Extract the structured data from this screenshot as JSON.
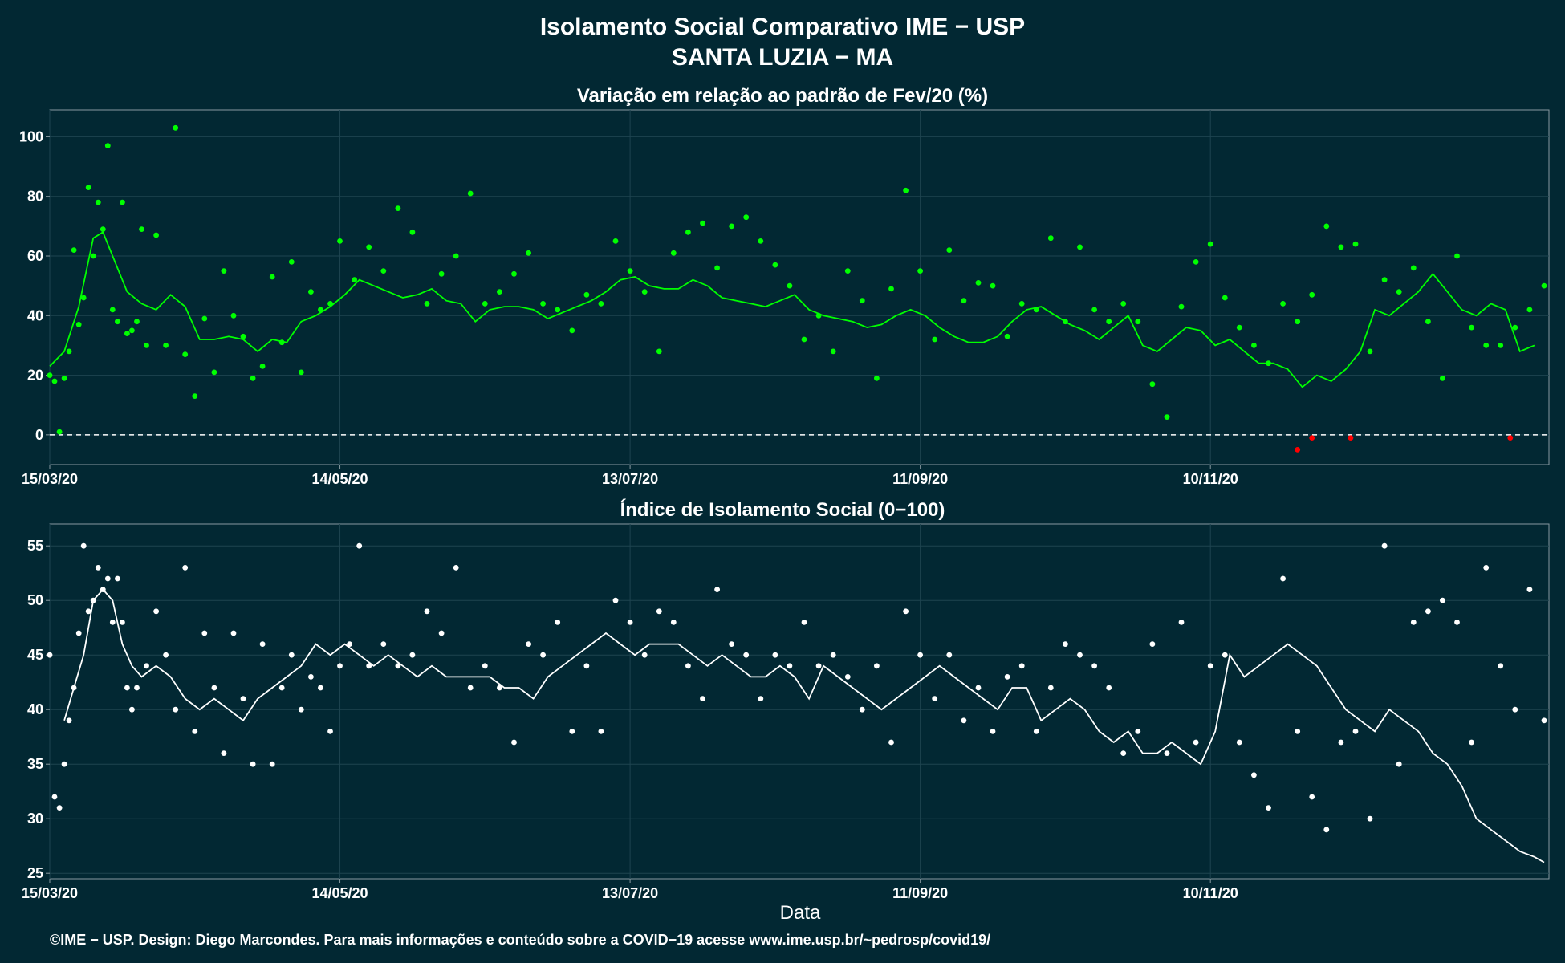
{
  "header": {
    "title_line1": "Isolamento Social Comparativo IME − USP",
    "title_line2": "SANTA LUZIA − MA"
  },
  "footer": {
    "credit": "©IME − USP. Design: Diego Marcondes. Para mais informações e conteúdo sobre a COVID−19 acesse www.ime.usp.br/~pedrosp/covid19/"
  },
  "colors": {
    "background": "#022833",
    "panel_border": "#8899a0",
    "grid": "#1e4450",
    "variation_points": "#00ff00",
    "negative_points": "#ff0000",
    "index_points": "#ffffff"
  },
  "chart_data": [
    {
      "type": "scatter",
      "title": "Variação em relação ao padrão de Fev/20 (%)",
      "xlabel": "",
      "ylabel": "",
      "x_tick_labels": [
        "15/03/20",
        "14/05/20",
        "13/07/20",
        "11/09/20",
        "10/11/20"
      ],
      "x_tick_days": [
        0,
        60,
        120,
        180,
        240
      ],
      "y_ticks": [
        0,
        20,
        40,
        60,
        80,
        100
      ],
      "xlim": [
        0,
        310
      ],
      "ylim": [
        -10,
        109
      ],
      "reference_line": 0,
      "grid": true,
      "series": [
        {
          "x": [
            0,
            1,
            2,
            3,
            4,
            5,
            6,
            7,
            8,
            9,
            10,
            11,
            12,
            13,
            14,
            15,
            16,
            17,
            18,
            19,
            20,
            22,
            24,
            26,
            28,
            30,
            32,
            34,
            36,
            38,
            40,
            42,
            44,
            46,
            48,
            50,
            52,
            54,
            56,
            58,
            60,
            63,
            66,
            69,
            72,
            75,
            78,
            81,
            84,
            87,
            90,
            93,
            96,
            99,
            102,
            105,
            108,
            111,
            114,
            117,
            120,
            123,
            126,
            129,
            132,
            135,
            138,
            141,
            144,
            147,
            150,
            153,
            156,
            159,
            162,
            165,
            168,
            171,
            174,
            177,
            180,
            183,
            186,
            189,
            192,
            195,
            198,
            201,
            204,
            207,
            210,
            213,
            216,
            219,
            222,
            225,
            228,
            231,
            234,
            237,
            240,
            243,
            246,
            249,
            252,
            255,
            258,
            261,
            264,
            267,
            270,
            273,
            276,
            279,
            282,
            285,
            288,
            291,
            294,
            297,
            300,
            303,
            306,
            309
          ],
          "values": [
            20,
            18,
            1,
            19,
            28,
            62,
            37,
            46,
            83,
            60,
            78,
            69,
            97,
            42,
            38,
            78,
            34,
            35,
            38,
            69,
            30,
            67,
            30,
            103,
            27,
            13,
            39,
            21,
            55,
            40,
            33,
            19,
            23,
            53,
            31,
            58,
            21,
            48,
            42,
            44,
            65,
            52,
            63,
            55,
            76,
            68,
            44,
            54,
            60,
            81,
            44,
            48,
            54,
            61,
            44,
            42,
            35,
            47,
            44,
            65,
            55,
            48,
            28,
            61,
            68,
            71,
            56,
            70,
            73,
            65,
            57,
            50,
            32,
            40,
            28,
            55,
            45,
            19,
            49,
            82,
            55,
            32,
            62,
            45,
            51,
            50,
            33,
            44,
            42,
            66,
            38,
            63,
            42,
            38,
            44,
            38,
            17,
            6,
            43,
            58,
            64,
            46,
            36,
            30,
            24,
            44,
            38,
            47,
            70,
            63,
            64,
            28,
            52,
            48,
            56,
            38,
            19,
            60,
            36,
            30,
            30,
            36,
            42,
            50
          ]
        },
        {
          "name": "negative",
          "x": [
            258,
            261,
            269,
            302
          ],
          "values": [
            -5,
            -1,
            -1,
            -1
          ]
        },
        {
          "name": "moving-average",
          "type": "line",
          "x": [
            0,
            3,
            6,
            9,
            11,
            13,
            16,
            19,
            22,
            25,
            28,
            31,
            34,
            37,
            40,
            43,
            46,
            49,
            52,
            55,
            58,
            61,
            64,
            67,
            70,
            73,
            76,
            79,
            82,
            85,
            88,
            91,
            94,
            97,
            100,
            103,
            106,
            109,
            112,
            115,
            118,
            121,
            124,
            127,
            130,
            133,
            136,
            139,
            142,
            145,
            148,
            151,
            154,
            157,
            160,
            163,
            166,
            169,
            172,
            175,
            178,
            181,
            184,
            187,
            190,
            193,
            196,
            199,
            202,
            205,
            208,
            211,
            214,
            217,
            220,
            223,
            226,
            229,
            232,
            235,
            238,
            241,
            244,
            247,
            250,
            253,
            256,
            259,
            262,
            265,
            268,
            271,
            274,
            277,
            280,
            283,
            286,
            289,
            292,
            295,
            298,
            301,
            304,
            307
          ],
          "values": [
            23,
            28,
            43,
            66,
            68,
            60,
            48,
            44,
            42,
            47,
            43,
            32,
            32,
            33,
            32,
            28,
            32,
            31,
            38,
            40,
            43,
            47,
            52,
            50,
            48,
            46,
            47,
            49,
            45,
            44,
            38,
            42,
            43,
            43,
            42,
            39,
            41,
            43,
            45,
            48,
            52,
            53,
            50,
            49,
            49,
            52,
            50,
            46,
            45,
            44,
            43,
            45,
            47,
            42,
            40,
            39,
            38,
            36,
            37,
            40,
            42,
            40,
            36,
            33,
            31,
            31,
            33,
            38,
            42,
            43,
            40,
            37,
            35,
            32,
            36,
            40,
            30,
            28,
            32,
            36,
            35,
            30,
            32,
            28,
            24,
            24,
            22,
            16,
            20,
            18,
            22,
            28,
            42,
            40,
            44,
            48,
            54,
            48,
            42,
            40,
            44,
            42,
            28,
            30
          ]
        }
      ]
    },
    {
      "type": "scatter",
      "title": "Índice de Isolamento Social (0−100)",
      "xlabel": "Data",
      "ylabel": "",
      "x_tick_labels": [
        "15/03/20",
        "14/05/20",
        "13/07/20",
        "11/09/20",
        "10/11/20"
      ],
      "x_tick_days": [
        0,
        60,
        120,
        180,
        240
      ],
      "y_ticks": [
        25,
        30,
        35,
        40,
        45,
        50,
        55
      ],
      "xlim": [
        0,
        310
      ],
      "ylim": [
        24.5,
        57
      ],
      "grid": true,
      "series": [
        {
          "x": [
            0,
            1,
            2,
            3,
            4,
            5,
            6,
            7,
            8,
            9,
            10,
            11,
            12,
            13,
            14,
            15,
            16,
            17,
            18,
            20,
            22,
            24,
            26,
            28,
            30,
            32,
            34,
            36,
            38,
            40,
            42,
            44,
            46,
            48,
            50,
            52,
            54,
            56,
            58,
            60,
            62,
            64,
            66,
            69,
            72,
            75,
            78,
            81,
            84,
            87,
            90,
            93,
            96,
            99,
            102,
            105,
            108,
            111,
            114,
            117,
            120,
            123,
            126,
            129,
            132,
            135,
            138,
            141,
            144,
            147,
            150,
            153,
            156,
            159,
            162,
            165,
            168,
            171,
            174,
            177,
            180,
            183,
            186,
            189,
            192,
            195,
            198,
            201,
            204,
            207,
            210,
            213,
            216,
            219,
            222,
            225,
            228,
            231,
            234,
            237,
            240,
            243,
            246,
            249,
            252,
            255,
            258,
            261,
            264,
            267,
            270,
            273,
            276,
            279,
            282,
            285,
            288,
            291,
            294,
            297,
            300,
            303,
            306,
            309
          ],
          "values": [
            45,
            32,
            31,
            35,
            39,
            42,
            47,
            55,
            49,
            50,
            53,
            51,
            52,
            48,
            52,
            48,
            42,
            40,
            42,
            44,
            49,
            45,
            40,
            53,
            38,
            47,
            42,
            36,
            47,
            41,
            35,
            46,
            35,
            42,
            45,
            40,
            43,
            42,
            38,
            44,
            46,
            55,
            44,
            46,
            44,
            45,
            49,
            47,
            53,
            42,
            44,
            42,
            37,
            46,
            45,
            48,
            38,
            44,
            38,
            50,
            48,
            45,
            49,
            48,
            44,
            41,
            51,
            46,
            45,
            41,
            45,
            44,
            48,
            44,
            45,
            43,
            40,
            44,
            37,
            49,
            45,
            41,
            45,
            39,
            42,
            38,
            43,
            44,
            38,
            42,
            46,
            45,
            44,
            42,
            36,
            38,
            46,
            36,
            48,
            37,
            44,
            45,
            37,
            34,
            31,
            52,
            38,
            32,
            29,
            37,
            38,
            30,
            55,
            35,
            48,
            49,
            50,
            48,
            37,
            53,
            44,
            40,
            51,
            39
          ]
        },
        {
          "name": "moving-average",
          "type": "line",
          "x": [
            3,
            5,
            7,
            9,
            11,
            13,
            15,
            17,
            19,
            22,
            25,
            28,
            31,
            34,
            37,
            40,
            43,
            46,
            49,
            52,
            55,
            58,
            61,
            64,
            67,
            70,
            73,
            76,
            79,
            82,
            85,
            88,
            91,
            94,
            97,
            100,
            103,
            106,
            109,
            112,
            115,
            118,
            121,
            124,
            127,
            130,
            133,
            136,
            139,
            142,
            145,
            148,
            151,
            154,
            157,
            160,
            163,
            166,
            169,
            172,
            175,
            178,
            181,
            184,
            187,
            190,
            193,
            196,
            199,
            202,
            205,
            208,
            211,
            214,
            217,
            220,
            223,
            226,
            229,
            232,
            235,
            238,
            241,
            244,
            247,
            250,
            253,
            256,
            259,
            262,
            265,
            268,
            271,
            274,
            277,
            280,
            283,
            286,
            289,
            292,
            295,
            298,
            301,
            304,
            307,
            309
          ],
          "values": [
            39,
            42,
            45,
            50,
            51,
            50,
            46,
            44,
            43,
            44,
            43,
            41,
            40,
            41,
            40,
            39,
            41,
            42,
            43,
            44,
            46,
            45,
            46,
            45,
            44,
            45,
            44,
            43,
            44,
            43,
            43,
            43,
            43,
            42,
            42,
            41,
            43,
            44,
            45,
            46,
            47,
            46,
            45,
            46,
            46,
            46,
            45,
            44,
            45,
            44,
            43,
            43,
            44,
            43,
            41,
            44,
            43,
            42,
            41,
            40,
            41,
            42,
            43,
            44,
            43,
            42,
            41,
            40,
            42,
            42,
            39,
            40,
            41,
            40,
            38,
            37,
            38,
            36,
            36,
            37,
            36,
            35,
            38,
            45,
            43,
            44,
            45,
            46,
            45,
            44,
            42,
            40,
            39,
            38,
            40,
            39,
            38,
            36,
            35,
            33,
            30,
            29,
            28,
            27,
            26.5,
            26
          ]
        }
      ]
    }
  ]
}
